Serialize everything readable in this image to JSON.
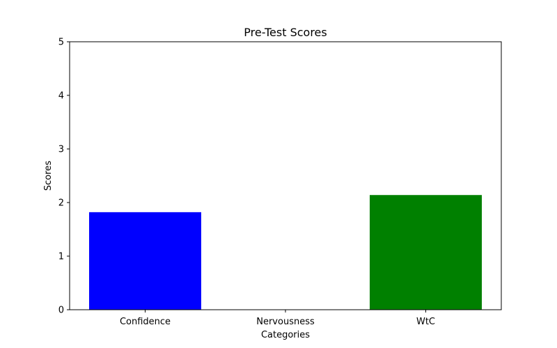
{
  "chart_data": {
    "type": "bar",
    "title": "Pre-Test Scores",
    "xlabel": "Categories",
    "ylabel": "Scores",
    "categories": [
      "Confidence",
      "Nervousness",
      "WtC"
    ],
    "values": [
      1.82,
      0.0,
      2.14
    ],
    "colors": [
      "#0000ff",
      "#ff0000",
      "#008000"
    ],
    "ylim": [
      0,
      5
    ],
    "yticks": [
      "0",
      "1",
      "2",
      "3",
      "4",
      "5"
    ],
    "grid": false,
    "legend": "none"
  }
}
